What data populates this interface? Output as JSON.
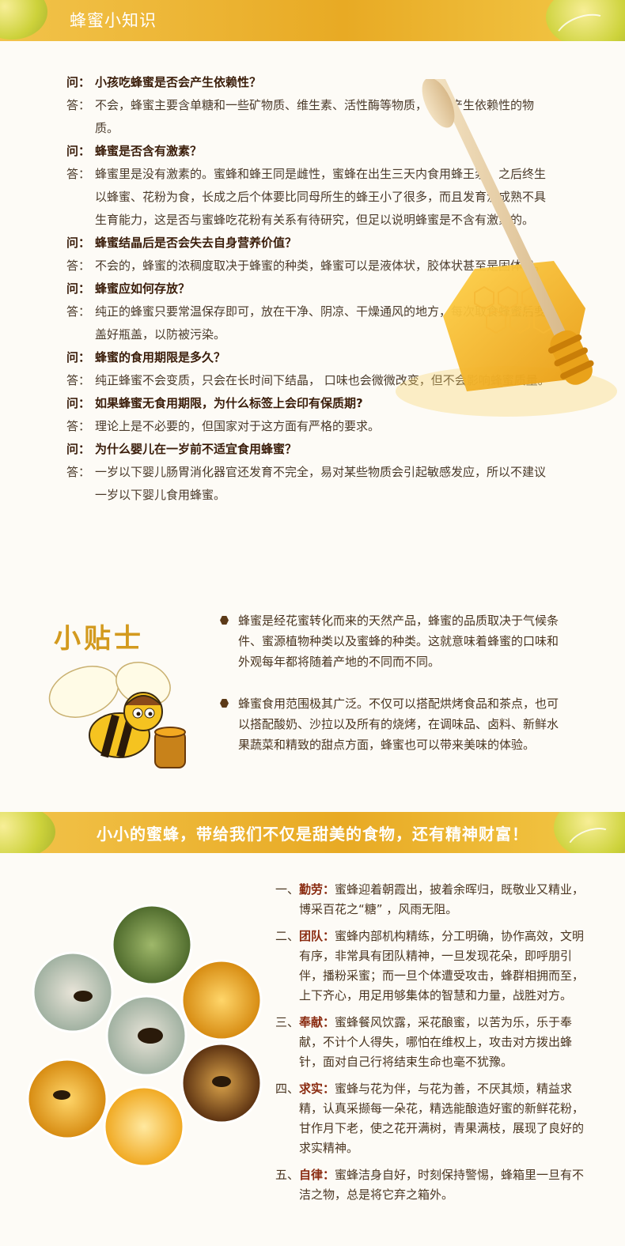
{
  "header": {
    "title": "蜂蜜小知识"
  },
  "qa": [
    {
      "label": "问：",
      "text": "小孩吃蜂蜜是否会产生依赖性？",
      "kind": "q"
    },
    {
      "label": "答：",
      "text": "不会，蜂蜜主要含单糖和一些矿物质、维生素、活性酶等物质，没有产生依赖性的物质。",
      "kind": "a"
    },
    {
      "label": "问：",
      "text": "蜂蜜是否含有激素？",
      "kind": "q"
    },
    {
      "label": "答：",
      "text": "蜂蜜里是没有激素的。蜜蜂和蜂王同是雌性，蜜蜂在出生三天内食用蜂王浆，之后终生以蜂蜜、花粉为食，长成之后个体要比同母所生的蜂王小了很多，而且发育没成熟不具生育能力，这是否与蜜蜂吃花粉有关系有待研究，但足以说明蜂蜜是不含有激素的。",
      "kind": "a"
    },
    {
      "label": "问：",
      "text": "蜂蜜结晶后是否会失去自身营养价值？",
      "kind": "q"
    },
    {
      "label": "答：",
      "text": "不会的，蜂蜜的浓稠度取决于蜂蜜的种类，蜂蜜可以是液体状，胶体状甚至是固体状。",
      "kind": "a"
    },
    {
      "label": "问：",
      "text": "蜂蜜应如何存放？",
      "kind": "q"
    },
    {
      "label": "答：",
      "text": "纯正的蜂蜜只要常温保存即可，放在干净、阴凉、干燥通风的地方，每次取食蜂蜜后要盖好瓶盖，以防被污染。",
      "kind": "a"
    },
    {
      "label": "问：",
      "text": "蜂蜜的食用期限是多久？",
      "kind": "q"
    },
    {
      "label": "答：",
      "text": "纯正蜂蜜不会变质，只会在长时间下结晶， 口味也会微微改变，但不会影响蜂蜜质量。",
      "kind": "a"
    },
    {
      "label": "问：",
      "text": "如果蜂蜜无食用期限，为什么标签上会印有保质期?",
      "kind": "q"
    },
    {
      "label": "答：",
      "text": "理论上是不必要的，但国家对于这方面有严格的要求。",
      "kind": "a"
    },
    {
      "label": "问：",
      "text": "为什么婴儿在一岁前不适宜食用蜂蜜？",
      "kind": "q"
    },
    {
      "label": "答：",
      "text": " 一岁以下婴儿肠胃消化器官还发育不完全，易对某些物质会引起敏感发应，所以不建议一岁以下婴儿食用蜂蜜。",
      "kind": "a"
    }
  ],
  "tips": {
    "title": "小贴士",
    "items": [
      "蜂蜜是经花蜜转化而来的天然产品，蜂蜜的品质取决于气候条件、蜜源植物种类以及蜜蜂的种类。这就意味着蜂蜜的口味和外观每年都将随着产地的不同而不同。",
      "蜂蜜食用范围极其广泛。不仅可以搭配烘烤食品和茶点，也可以搭配酸奶、沙拉以及所有的烧烤，在调味品、卤料、新鲜水果蔬菜和精致的甜点方面，蜂蜜也可以带来美味的体验。"
    ]
  },
  "banner2": {
    "title": "小小的蜜蜂，带给我们不仅是甜美的食物，还有精神财富！"
  },
  "spirit": [
    {
      "num": "一、",
      "keyword": "勤劳：",
      "text": "蜜蜂迎着朝霞出，披着余晖归，既敬业又精业，博采百花之“糖” ，风雨无阻。"
    },
    {
      "num": "二、",
      "keyword": "团队：",
      "text": "蜜蜂内部机构精练，分工明确，协作高效，文明有序，非常具有团队精神，一旦发现花朵，即呼朋引伴，播粉采蜜；而一旦个体遭受攻击，蜂群相拥而至，上下齐心，用足用够集体的智慧和力量，战胜对方。"
    },
    {
      "num": "三、",
      "keyword": "奉献：",
      "text": "蜜蜂餐风饮露，采花酿蜜，以苦为乐，乐于奉献，不计个人得失，哪怕在维权上，攻击对方拨出蜂针，面对自己行将结束生命也毫不犹豫。"
    },
    {
      "num": "四、",
      "keyword": "求实：",
      "text": "蜜蜂与花为伴，与花为善，不厌其烦，精益求精，认真采撷每一朵花，精选能酿造好蜜的新鲜花粉，甘作月下老，使之花开满树，青果满枝，展现了良好的求实精神。"
    },
    {
      "num": "五、",
      "keyword": "自律：",
      "text": "蜜蜂洁身自好，时刻保持警惕，蜂箱里一旦有不洁之物，总是将它弃之箱外。"
    }
  ],
  "colors": {
    "banner": "#e8aa24",
    "keyword": "#8a2b10",
    "tips_title": "#d39a1e"
  }
}
